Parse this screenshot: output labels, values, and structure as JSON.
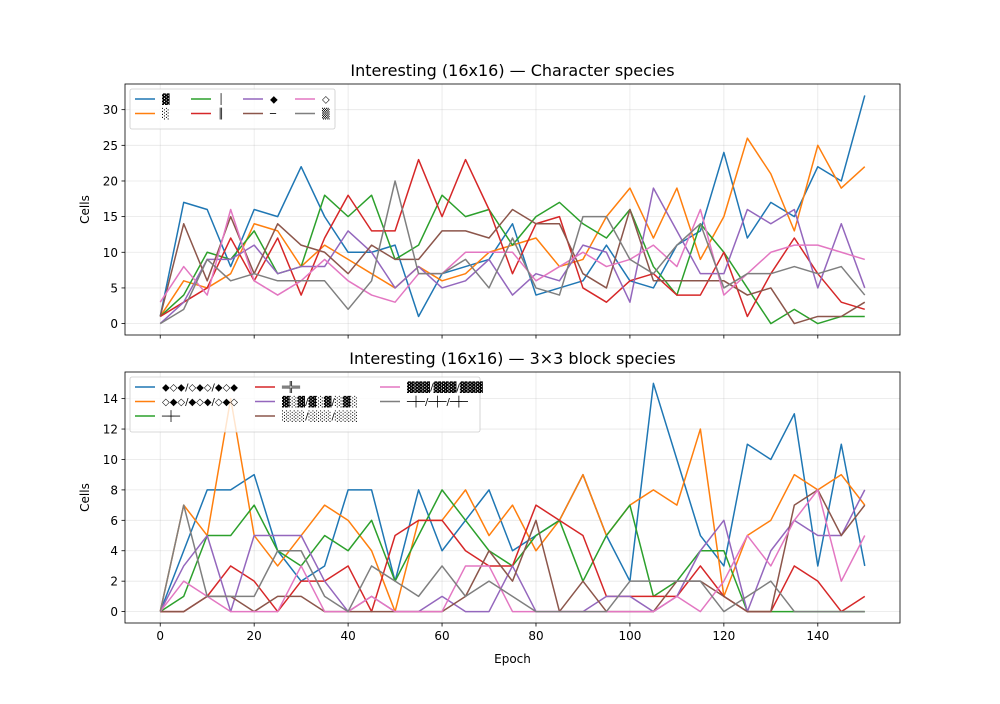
{
  "figure": {
    "xlabel": "Epoch"
  },
  "chart_data": [
    {
      "type": "line",
      "title": "Interesting (16x16) — Character species",
      "xlabel": "",
      "ylabel": "Cells",
      "xlim": [
        -7.5,
        157.5
      ],
      "ylim": [
        -1.6,
        33.6
      ],
      "xticks": [
        0,
        20,
        40,
        60,
        80,
        100,
        120,
        140
      ],
      "xtick_labels_shown": false,
      "yticks": [
        0,
        5,
        10,
        15,
        20,
        25,
        30
      ],
      "grid": true,
      "legend": {
        "placement": "top-left",
        "ncol": 4
      },
      "x": [
        0,
        5,
        10,
        15,
        20,
        25,
        30,
        35,
        40,
        45,
        50,
        55,
        60,
        65,
        70,
        75,
        80,
        85,
        90,
        95,
        100,
        105,
        110,
        115,
        120,
        125,
        130,
        135,
        140,
        145,
        150
      ],
      "series": [
        {
          "name": "▓",
          "color": "#1f77b4",
          "values": [
            1,
            17,
            16,
            8,
            16,
            15,
            22,
            15,
            10,
            10,
            11,
            1,
            7,
            8,
            9,
            14,
            4,
            5,
            6,
            11,
            6,
            5,
            11,
            13,
            24,
            12,
            17,
            15,
            22,
            20,
            32
          ]
        },
        {
          "name": "░",
          "color": "#ff7f0e",
          "values": [
            1,
            6,
            5,
            7,
            14,
            13,
            8,
            11,
            9,
            7,
            5,
            8,
            6,
            7,
            10,
            11,
            12,
            8,
            9,
            15,
            19,
            12,
            19,
            9,
            15,
            26,
            21,
            13,
            25,
            19,
            22
          ]
        },
        {
          "name": "│",
          "color": "#2ca02c",
          "values": [
            1,
            4,
            10,
            9,
            13,
            7,
            8,
            18,
            15,
            18,
            9,
            11,
            18,
            15,
            16,
            11,
            15,
            17,
            14,
            12,
            16,
            8,
            4,
            14,
            10,
            5,
            0,
            2,
            0,
            1,
            1
          ]
        },
        {
          "name": "║",
          "color": "#d62728",
          "values": [
            1,
            3,
            5,
            12,
            6,
            12,
            4,
            12,
            18,
            13,
            13,
            23,
            15,
            23,
            16,
            7,
            14,
            15,
            5,
            3,
            6,
            7,
            4,
            4,
            10,
            1,
            7,
            12,
            7,
            3,
            2
          ]
        },
        {
          "name": "◆",
          "color": "#9467bd",
          "values": [
            0,
            3,
            9,
            9,
            11,
            7,
            8,
            8,
            13,
            10,
            5,
            8,
            5,
            6,
            9,
            4,
            7,
            6,
            11,
            10,
            3,
            19,
            13,
            7,
            7,
            16,
            14,
            16,
            5,
            14,
            5
          ]
        },
        {
          "name": "─",
          "color": "#8c564b",
          "values": [
            1,
            14,
            6,
            15,
            7,
            14,
            11,
            10,
            7,
            11,
            9,
            9,
            13,
            13,
            12,
            16,
            14,
            14,
            7,
            5,
            16,
            6,
            6,
            6,
            6,
            4,
            5,
            0,
            1,
            1,
            3
          ]
        },
        {
          "name": "◇",
          "color": "#e377c2",
          "values": [
            3,
            8,
            4,
            16,
            6,
            4,
            6,
            9,
            6,
            4,
            3,
            7,
            7,
            10,
            10,
            10,
            6,
            8,
            10,
            8,
            9,
            11,
            8,
            16,
            4,
            7,
            10,
            11,
            11,
            10,
            9
          ]
        },
        {
          "name": "▒",
          "color": "#7f7f7f",
          "values": [
            0,
            2,
            9,
            6,
            7,
            6,
            6,
            6,
            2,
            6,
            20,
            7,
            7,
            9,
            5,
            12,
            5,
            4,
            15,
            15,
            9,
            7,
            11,
            14,
            5,
            7,
            7,
            8,
            7,
            8,
            4
          ]
        }
      ]
    },
    {
      "type": "line",
      "title": "Interesting (16x16) — 3×3 block species",
      "xlabel": "Epoch",
      "ylabel": "Cells",
      "xlim": [
        -7.5,
        157.5
      ],
      "ylim": [
        -0.75,
        15.75
      ],
      "xticks": [
        0,
        20,
        40,
        60,
        80,
        100,
        120,
        140
      ],
      "xtick_labels_shown": true,
      "yticks": [
        0,
        2,
        4,
        6,
        8,
        10,
        12,
        14
      ],
      "grid": true,
      "legend": {
        "placement": "top-left",
        "ncol": 3
      },
      "x": [
        0,
        5,
        10,
        15,
        20,
        25,
        30,
        35,
        40,
        45,
        50,
        55,
        60,
        65,
        70,
        75,
        80,
        85,
        90,
        95,
        100,
        105,
        110,
        115,
        120,
        125,
        130,
        135,
        140,
        145,
        150
      ],
      "series": [
        {
          "name": "◆◇◆/◇◆◇/◆◇◆",
          "color": "#1f77b4",
          "values": [
            0,
            4,
            8,
            8,
            9,
            4,
            2,
            3,
            8,
            8,
            2,
            8,
            4,
            6,
            8,
            4,
            5,
            6,
            9,
            5,
            2,
            15,
            10,
            5,
            3,
            11,
            10,
            13,
            3,
            11,
            3
          ]
        },
        {
          "name": "◇◆◇/◆◇◆/◇◆◇",
          "color": "#ff7f0e",
          "values": [
            0,
            7,
            5,
            14,
            5,
            3,
            5,
            7,
            6,
            4,
            0,
            6,
            6,
            8,
            5,
            7,
            4,
            6,
            9,
            5,
            7,
            8,
            7,
            12,
            1,
            5,
            6,
            9,
            8,
            9,
            7
          ]
        },
        {
          "name": "─┼─",
          "color": "#2ca02c",
          "values": [
            0,
            1,
            5,
            5,
            7,
            4,
            3,
            5,
            4,
            6,
            2,
            5,
            8,
            6,
            4,
            3,
            5,
            6,
            2,
            5,
            7,
            1,
            2,
            4,
            4,
            0,
            0,
            0,
            0,
            0,
            0
          ]
        },
        {
          "name": "═╬═",
          "color": "#d62728",
          "values": [
            0,
            0,
            1,
            3,
            2,
            0,
            2,
            2,
            3,
            0,
            5,
            6,
            6,
            4,
            3,
            3,
            7,
            6,
            5,
            1,
            1,
            1,
            1,
            3,
            1,
            0,
            0,
            3,
            2,
            0,
            1
          ]
        },
        {
          "name": "▓░▓/▓░▓/░▓░",
          "color": "#9467bd",
          "values": [
            0,
            3,
            5,
            0,
            5,
            5,
            5,
            2,
            0,
            1,
            0,
            0,
            1,
            0,
            0,
            3,
            0,
            0,
            0,
            1,
            1,
            0,
            1,
            4,
            6,
            0,
            4,
            6,
            5,
            5,
            8
          ]
        },
        {
          "name": "░░░/░░░/░░░",
          "color": "#8c564b",
          "values": [
            0,
            0,
            1,
            1,
            0,
            1,
            1,
            0,
            0,
            0,
            0,
            0,
            0,
            1,
            4,
            2,
            6,
            0,
            2,
            0,
            0,
            0,
            2,
            2,
            1,
            0,
            0,
            7,
            8,
            5,
            7
          ]
        },
        {
          "name": "▓▓▓/▓▓▓/▓▓▓",
          "color": "#e377c2",
          "values": [
            0,
            2,
            1,
            0,
            0,
            0,
            3,
            0,
            0,
            1,
            0,
            0,
            0,
            3,
            3,
            0,
            0,
            0,
            0,
            0,
            0,
            0,
            1,
            0,
            2,
            5,
            3,
            6,
            8,
            2,
            5
          ]
        },
        {
          "name": "─┼─/─┼─/─┼─",
          "color": "#7f7f7f",
          "values": [
            0,
            7,
            1,
            1,
            1,
            4,
            4,
            1,
            0,
            3,
            2,
            1,
            3,
            1,
            2,
            1,
            0,
            0,
            0,
            0,
            2,
            2,
            2,
            2,
            0,
            1,
            2,
            0,
            0,
            0,
            0
          ]
        }
      ]
    }
  ]
}
